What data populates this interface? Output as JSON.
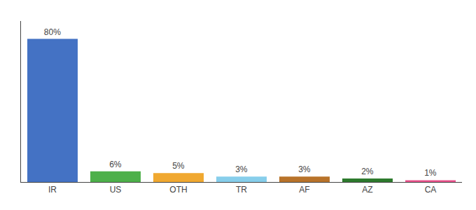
{
  "chart_data": {
    "type": "bar",
    "categories": [
      "IR",
      "US",
      "OTH",
      "TR",
      "AF",
      "AZ",
      "CA"
    ],
    "values": [
      80,
      6,
      5,
      3,
      3,
      2,
      1
    ],
    "value_labels": [
      "80%",
      "6%",
      "5%",
      "3%",
      "3%",
      "2%",
      "1%"
    ],
    "colors": [
      "#4472c4",
      "#4db04a",
      "#f0a830",
      "#87ceeb",
      "#b8732a",
      "#2d7a2d",
      "#e8508a"
    ],
    "ylim": [
      0,
      90
    ],
    "data_labels": true,
    "tick_labels": "x",
    "grid": false
  }
}
